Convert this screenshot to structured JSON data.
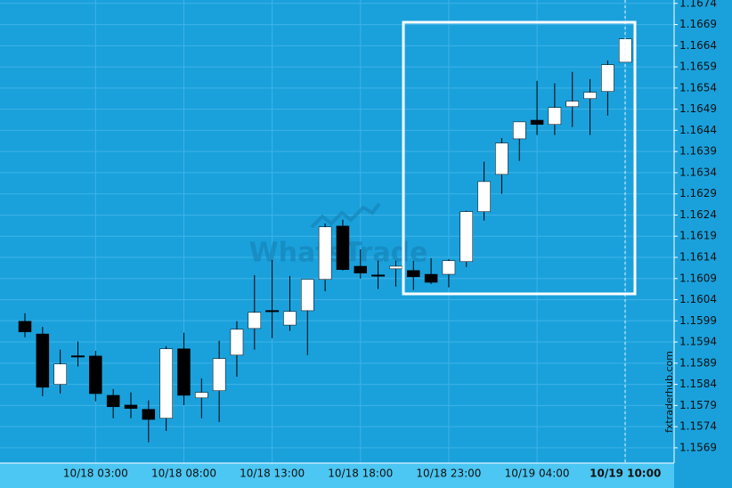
{
  "chart_data": {
    "type": "candlestick",
    "watermark": "WhatsTrade",
    "source": "fxtraderhub.com",
    "categories": [
      null,
      null,
      null,
      null,
      "10/18 03:00",
      null,
      null,
      null,
      null,
      "10/18 08:00",
      null,
      null,
      null,
      null,
      "10/18 13:00",
      null,
      null,
      null,
      null,
      "10/18 18:00",
      null,
      null,
      null,
      null,
      "10/18 23:00",
      null,
      null,
      null,
      null,
      "10/19 04:00",
      null,
      null,
      null,
      null,
      "10/19 10:00"
    ],
    "open": [
      1.15989,
      1.15959,
      1.1584,
      1.15907,
      1.15907,
      1.15814,
      1.15791,
      1.15781,
      1.1576,
      1.15924,
      1.15808,
      1.15825,
      1.15909,
      1.15972,
      1.16014,
      1.1598,
      1.16014,
      1.16088,
      1.16214,
      1.16119,
      1.16098,
      1.16113,
      1.16109,
      1.161,
      1.161,
      1.1613,
      1.16248,
      1.16336,
      1.1642,
      1.16464,
      1.16454,
      1.16496,
      1.16515,
      1.16532,
      1.16601
    ],
    "high": [
      1.16008,
      1.15976,
      1.15922,
      1.15941,
      1.15919,
      1.15829,
      1.15821,
      1.15802,
      1.1593,
      1.15962,
      1.15854,
      1.15943,
      1.15989,
      1.16098,
      1.16134,
      1.16096,
      1.16088,
      1.1622,
      1.16229,
      1.16159,
      1.16132,
      1.16132,
      1.16132,
      1.16138,
      1.16136,
      1.1625,
      1.16366,
      1.16422,
      1.1646,
      1.16557,
      1.16551,
      1.16578,
      1.16561,
      1.16605,
      1.16656
    ],
    "low": [
      1.15951,
      1.15812,
      1.15818,
      1.15882,
      1.158,
      1.1576,
      1.1576,
      1.15703,
      1.1573,
      1.15791,
      1.1576,
      1.15751,
      1.15858,
      1.15922,
      1.15949,
      1.15966,
      1.15909,
      1.1606,
      1.16109,
      1.1609,
      1.16065,
      1.16071,
      1.16063,
      1.16077,
      1.16069,
      1.16117,
      1.16227,
      1.1629,
      1.16368,
      1.16429,
      1.16429,
      1.16448,
      1.16429,
      1.16475,
      1.16601
    ],
    "close": [
      1.15964,
      1.15833,
      1.15888,
      1.15907,
      1.15818,
      1.15787,
      1.15783,
      1.15757,
      1.15924,
      1.15814,
      1.15821,
      1.15901,
      1.1597,
      1.1601,
      1.16012,
      1.16012,
      1.16088,
      1.16212,
      1.16111,
      1.16103,
      1.16098,
      1.16119,
      1.16094,
      1.16081,
      1.16132,
      1.16248,
      1.16319,
      1.1641,
      1.1646,
      1.16454,
      1.16494,
      1.16509,
      1.1653,
      1.16595,
      1.16656
    ],
    "up_color": "#ffffff",
    "down_color": "#000000",
    "ylim": [
      1.15654,
      1.16748
    ],
    "yticks": [
      1.1674,
      1.1669,
      1.1664,
      1.1659,
      1.1654,
      1.1649,
      1.1644,
      1.1639,
      1.1634,
      1.1629,
      1.1624,
      1.1619,
      1.1614,
      1.1609,
      1.1604,
      1.1599,
      1.1594,
      1.1589,
      1.1584,
      1.1579,
      1.1574,
      1.1569
    ],
    "grid": true
  }
}
